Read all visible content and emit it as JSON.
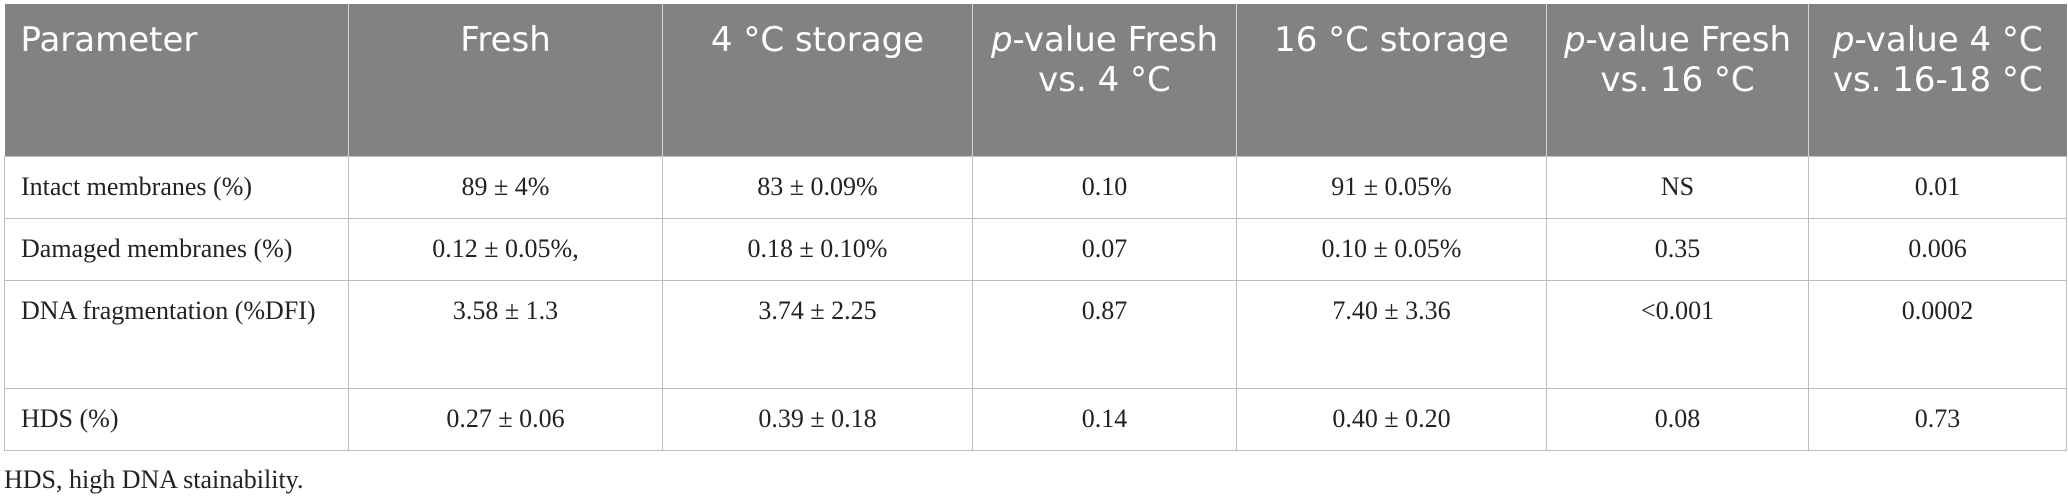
{
  "table": {
    "headers": [
      {
        "text": "Parameter"
      },
      {
        "text": "Fresh"
      },
      {
        "text": "4 °C storage"
      },
      {
        "italic": "p",
        "rest": "-value Fresh vs. 4 °C"
      },
      {
        "text": "16 °C storage"
      },
      {
        "italic": "p",
        "rest": "-value Fresh vs. 16 °C"
      },
      {
        "italic": "p",
        "rest": "-value 4 °C vs. 16-18 °C"
      }
    ],
    "rows": [
      [
        "Intact membranes (%)",
        "89 ± 4%",
        "83 ± 0.09%",
        "0.10",
        "91 ± 0.05%",
        "NS",
        "0.01"
      ],
      [
        "Damaged membranes (%)",
        "0.12 ± 0.05%,",
        "0.18 ± 0.10%",
        "0.07",
        "0.10 ± 0.05%",
        "0.35",
        "0.006"
      ],
      [
        "DNA fragmentation (%DFI)",
        "3.58 ± 1.3",
        "3.74 ± 2.25",
        "0.87",
        "7.40 ± 3.36",
        "<0.001",
        "0.0002"
      ],
      [
        "HDS (%)",
        "0.27 ± 0.06",
        "0.39 ± 0.18",
        "0.14",
        "0.40 ± 0.20",
        "0.08",
        "0.73"
      ]
    ]
  },
  "footnote": "HDS, high DNA stainability."
}
